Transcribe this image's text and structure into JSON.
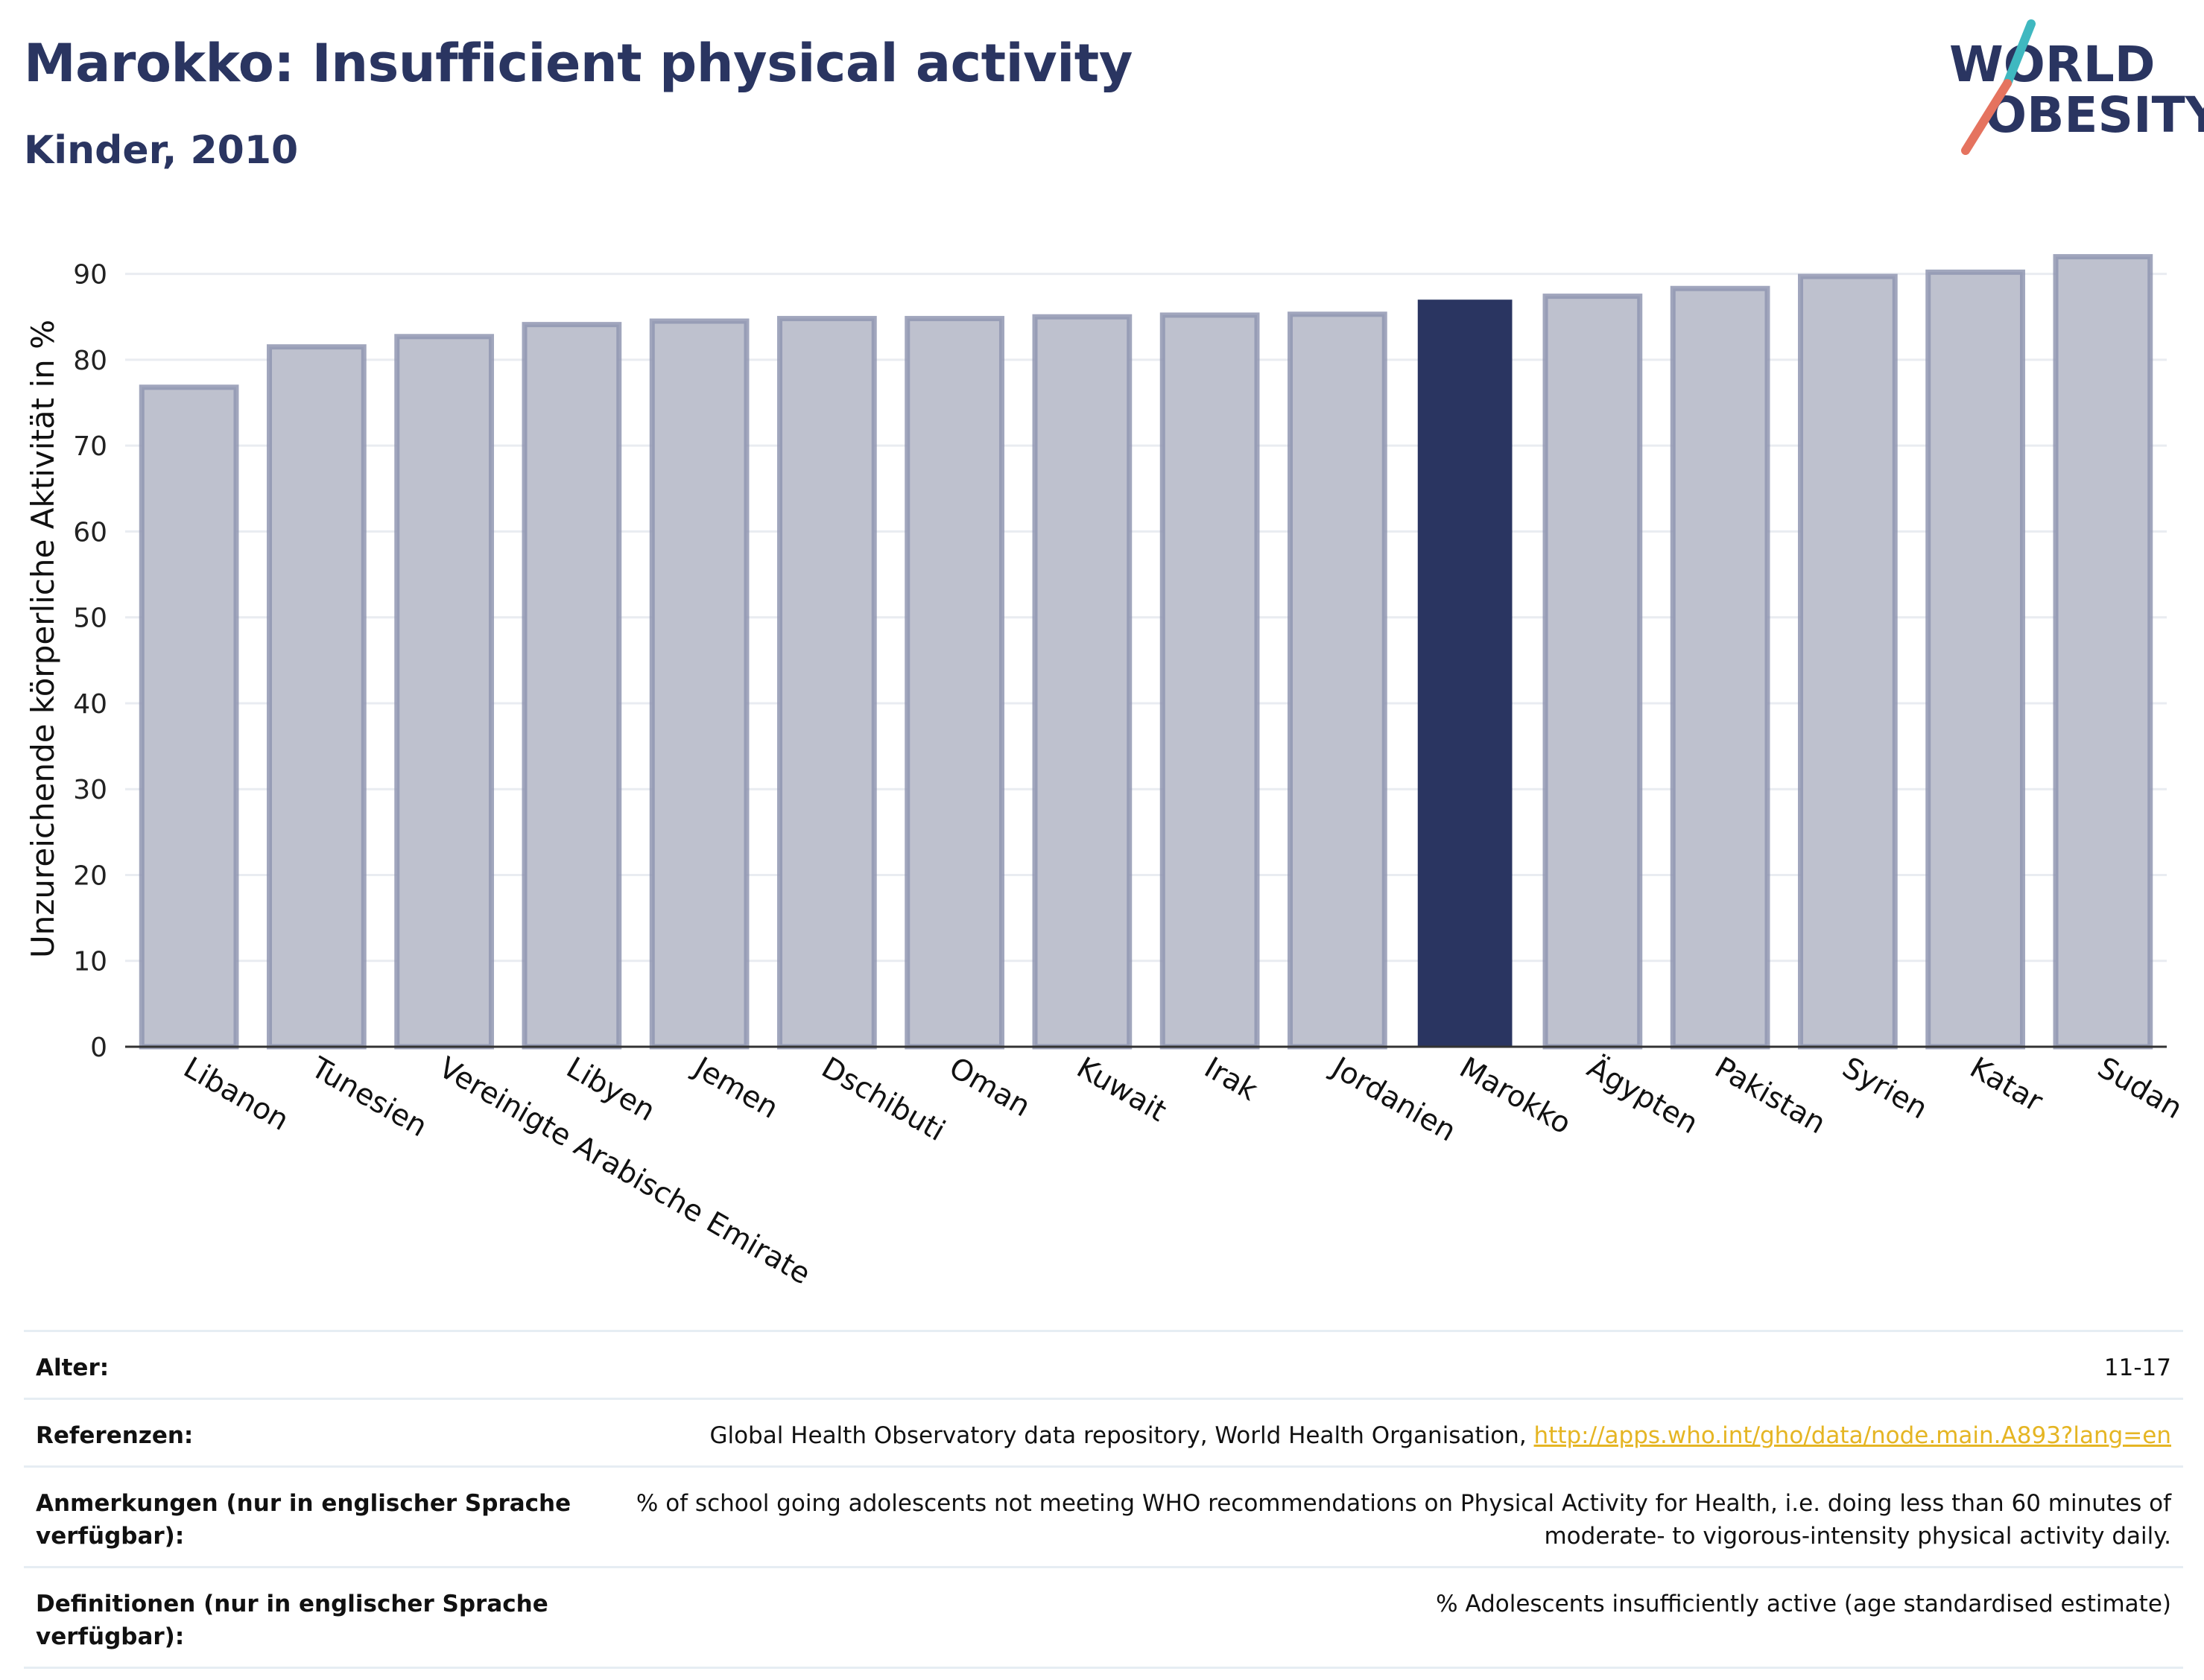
{
  "header": {
    "title": "Marokko: Insufficient physical activity",
    "subtitle": "Kinder, 2010"
  },
  "logo": {
    "line1": "WORLD",
    "line2": "OBESITY"
  },
  "colors": {
    "accent": "#2a3561",
    "bar_default": "#bec1ce",
    "bar_border": "#9197b2",
    "link": "#e5b523",
    "logo_teal": "#3fb8c0",
    "logo_coral": "#e5735f"
  },
  "chart_data": {
    "type": "bar",
    "categories": [
      "Libanon",
      "Tunesien",
      "Vereinigte Arabische Emirate",
      "Libyen",
      "Jemen",
      "Dschibuti",
      "Oman",
      "Kuwait",
      "Irak",
      "Jordanien",
      "Marokko",
      "Ägypten",
      "Pakistan",
      "Syrien",
      "Katar",
      "Sudan"
    ],
    "values": [
      76.8,
      81.5,
      82.7,
      84.1,
      84.5,
      84.8,
      84.8,
      85.0,
      85.2,
      85.3,
      87.0,
      87.4,
      88.3,
      89.7,
      90.2,
      92.0
    ],
    "highlight": "Marokko",
    "ylabel": "Unzureichende körperliche Aktivität in %",
    "xlabel": "",
    "ylim": [
      0,
      95
    ],
    "yticks": [
      0,
      10,
      20,
      30,
      40,
      50,
      60,
      70,
      80,
      90
    ],
    "grid": true
  },
  "meta": [
    {
      "label": "Alter:",
      "value": "11-17"
    },
    {
      "label": "Referenzen:",
      "value": "Global Health Observatory data repository, World Health Organisation, ",
      "link": "http://apps.who.int/gho/data/node.main.A893?lang=en"
    },
    {
      "label": "Anmerkungen (nur in englischer Sprache verfügbar):",
      "value": "% of school going adolescents not meeting WHO recommendations on Physical Activity for Health, i.e. doing less than 60 minutes of moderate- to vigorous-intensity physical activity daily."
    },
    {
      "label": "Definitionen (nur in englischer Sprache verfügbar):",
      "value": "% Adolescents insufficiently active (age standardised estimate)"
    }
  ]
}
